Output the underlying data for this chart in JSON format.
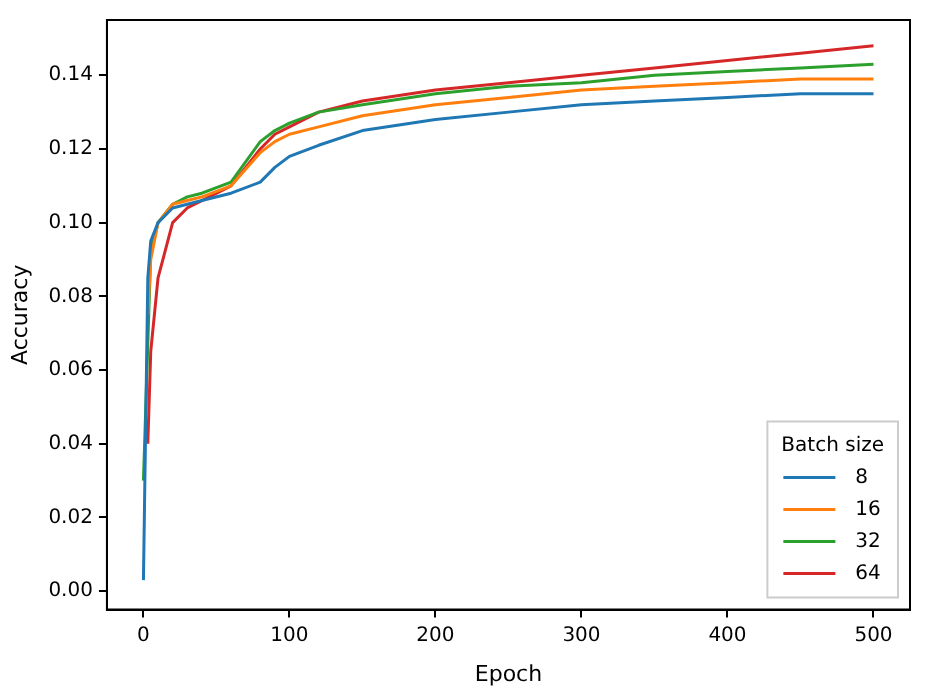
{
  "chart_data": {
    "type": "line",
    "xlabel": "Epoch",
    "ylabel": "Accuracy",
    "legend_title": "Batch size",
    "legend": "bottom right",
    "grid": false,
    "marker": "none",
    "line_style": "solid",
    "xlim": [
      -25,
      525
    ],
    "xticks": [
      0,
      100,
      200,
      300,
      400,
      500
    ],
    "ylim": [
      -0.005,
      0.155
    ],
    "yticks": [
      {
        "value": 0,
        "label": "0.00"
      },
      {
        "value": 0.02,
        "label": "0.02"
      },
      {
        "value": 0.04,
        "label": "0.04"
      },
      {
        "value": 0.06,
        "label": "0.06"
      },
      {
        "value": 0.08,
        "label": "0.08"
      },
      {
        "value": 0.1,
        "label": "0.10"
      },
      {
        "value": 0.12,
        "label": "0.12"
      },
      {
        "value": 0.14,
        "label": "0.14"
      }
    ],
    "x": [
      0,
      3,
      5,
      10,
      20,
      30,
      40,
      60,
      80,
      90,
      100,
      120,
      150,
      200,
      250,
      300,
      350,
      400,
      450,
      500
    ],
    "series": [
      {
        "name": "8",
        "color": "#1f77b4",
        "values": [
          0.003,
          0.085,
          0.095,
          0.1,
          0.104,
          0.105,
          0.106,
          0.108,
          0.111,
          0.115,
          0.118,
          0.121,
          0.125,
          0.128,
          0.13,
          0.132,
          0.133,
          0.134,
          0.135,
          0.135
        ]
      },
      {
        "name": "16",
        "color": "#ff7f0e",
        "values": [
          null,
          0.075,
          0.09,
          0.1,
          0.105,
          0.106,
          0.107,
          0.11,
          0.119,
          0.122,
          0.124,
          0.126,
          0.129,
          0.132,
          0.134,
          0.136,
          0.137,
          0.138,
          0.139,
          0.139
        ]
      },
      {
        "name": "32",
        "color": "#2ca02c",
        "values": [
          0.03,
          null,
          0.092,
          0.1,
          0.105,
          0.107,
          0.108,
          0.111,
          0.122,
          0.125,
          0.127,
          0.13,
          0.132,
          0.135,
          0.137,
          0.138,
          0.14,
          0.141,
          0.142,
          0.143
        ]
      },
      {
        "name": "64",
        "color": "#d62728",
        "values": [
          null,
          0.04,
          0.065,
          0.085,
          0.1,
          0.104,
          0.106,
          0.11,
          0.12,
          0.124,
          0.126,
          0.13,
          0.133,
          0.136,
          0.138,
          0.14,
          0.142,
          0.144,
          0.146,
          0.148
        ]
      }
    ]
  }
}
